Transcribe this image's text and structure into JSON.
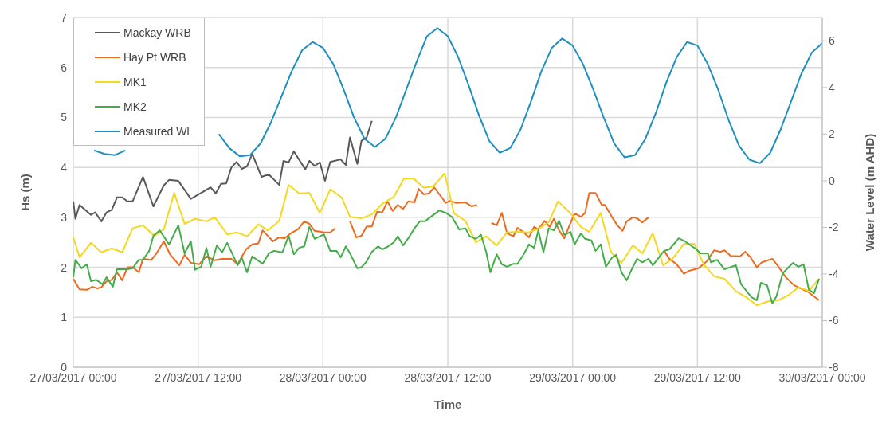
{
  "chart_data": {
    "type": "line",
    "xlabel": "Time",
    "ylabel": "Hs (m)",
    "y2label": "Water Level (m AHD)",
    "xlim": [
      "2017-03-27T00:00",
      "2017-03-30T00:00"
    ],
    "xticks": [
      {
        "value": "2017-03-27T00:00",
        "label": "27/03/2017 00:00"
      },
      {
        "value": "2017-03-27T12:00",
        "label": "27/03/2017 12:00"
      },
      {
        "value": "2017-03-28T00:00",
        "label": "28/03/2017 00:00"
      },
      {
        "value": "2017-03-28T12:00",
        "label": "28/03/2017 12:00"
      },
      {
        "value": "2017-03-29T00:00",
        "label": "29/03/2017 00:00"
      },
      {
        "value": "2017-03-29T12:00",
        "label": "29/03/2017 12:00"
      },
      {
        "value": "2017-03-30T00:00",
        "label": "30/03/2017 00:00"
      }
    ],
    "ylim": [
      0,
      7
    ],
    "yticks": [
      0,
      1,
      2,
      3,
      4,
      5,
      6,
      7
    ],
    "y2lim": [
      -8,
      7
    ],
    "y2ticks": [
      -8,
      -6,
      -4,
      -2,
      0,
      2,
      4,
      6
    ],
    "grid": true,
    "legend": "top left",
    "marker": "none",
    "line_style": "solid",
    "series": [
      {
        "name": "Mackay WRB",
        "color": "#595959",
        "x": [
          "2017-03-27T00:00",
          "2017-03-27T00:12",
          "2017-03-27T00:36",
          "2017-03-27T01:42",
          "2017-03-27T02:06",
          "2017-03-27T02:42",
          "2017-03-27T03:12",
          "2017-03-27T03:42",
          "2017-03-27T04:12",
          "2017-03-27T04:42",
          "2017-03-27T05:12",
          "2017-03-27T05:42",
          "2017-03-27T06:42",
          "2017-03-27T07:42",
          "2017-03-27T08:42",
          "2017-03-27T09:12",
          "2017-03-27T10:06",
          "2017-03-27T11:18",
          "2017-03-27T13:12",
          "2017-03-27T13:42",
          "2017-03-27T14:12",
          "2017-03-27T14:42",
          "2017-03-27T15:12",
          "2017-03-27T15:42",
          "2017-03-27T16:12",
          "2017-03-27T16:42",
          "2017-03-27T17:12",
          "2017-03-27T18:06",
          "2017-03-27T18:48",
          "2017-03-27T19:48",
          "2017-03-27T20:12",
          "2017-03-27T20:42",
          "2017-03-27T21:12",
          "2017-03-27T22:18",
          "2017-03-27T22:42",
          "2017-03-27T23:12",
          "2017-03-27T23:42",
          "2017-03-28T00:12",
          "2017-03-28T00:42",
          "2017-03-28T01:42",
          "2017-03-28T02:12",
          "2017-03-28T02:36",
          "2017-03-28T03:18",
          "2017-03-28T03:42",
          "2017-03-28T04:12",
          "2017-03-28T04:42"
        ],
        "values": [
          3.32,
          2.97,
          3.25,
          3.05,
          3.1,
          2.92,
          3.1,
          3.15,
          3.4,
          3.4,
          3.32,
          3.32,
          3.81,
          3.22,
          3.64,
          3.75,
          3.73,
          3.37,
          3.6,
          3.48,
          3.67,
          3.68,
          4.0,
          4.11,
          3.97,
          4.02,
          4.27,
          3.81,
          3.86,
          3.65,
          4.13,
          4.1,
          4.32,
          3.96,
          4.13,
          4.03,
          4.1,
          3.73,
          4.11,
          4.16,
          4.05,
          4.6,
          4.07,
          4.53,
          4.6,
          4.93
        ]
      },
      {
        "name": "Hay Pt WRB",
        "color": "#ed6b1f",
        "x": [
          "2017-03-27T00:00",
          "2017-03-27T00:36",
          "2017-03-27T01:18",
          "2017-03-27T01:48",
          "2017-03-27T02:18",
          "2017-03-27T02:42",
          "2017-03-27T03:12",
          "2017-03-27T03:42",
          "2017-03-27T04:12",
          "2017-03-27T04:42",
          "2017-03-27T05:12",
          "2017-03-27T05:42",
          "2017-03-27T06:18",
          "2017-03-27T06:42",
          "2017-03-27T07:30",
          "2017-03-27T08:00",
          "2017-03-27T08:42",
          "2017-03-27T09:18",
          "2017-03-27T10:12",
          "2017-03-27T10:42",
          "2017-03-27T11:18",
          "2017-03-27T12:06",
          "2017-03-27T12:48",
          "2017-03-27T13:36",
          "2017-03-27T14:18",
          "2017-03-27T15:12",
          "2017-03-27T15:48",
          "2017-03-27T16:36",
          "2017-03-27T17:12",
          "2017-03-27T17:48",
          "2017-03-27T18:12",
          "2017-03-27T19:12",
          "2017-03-27T19:48",
          "2017-03-27T20:18",
          "2017-03-27T20:54",
          "2017-03-27T21:36",
          "2017-03-27T22:12",
          "2017-03-27T22:42",
          "2017-03-27T23:12",
          "2017-03-28T00:06",
          "2017-03-28T00:42",
          "2017-03-28T01:12",
          "2017-03-28T01:54",
          "2017-03-28T02:36",
          "2017-03-28T03:12",
          "2017-03-28T03:42",
          "2017-03-28T04:12",
          "2017-03-28T04:42",
          "2017-03-28T05:12",
          "2017-03-28T05:42",
          "2017-03-28T06:12",
          "2017-03-28T06:42",
          "2017-03-28T07:12",
          "2017-03-28T07:42",
          "2017-03-28T08:12",
          "2017-03-28T08:48",
          "2017-03-28T09:12",
          "2017-03-28T09:42",
          "2017-03-28T10:12",
          "2017-03-28T10:42",
          "2017-03-28T11:12",
          "2017-03-28T11:48",
          "2017-03-28T12:12",
          "2017-03-28T12:48",
          "2017-03-28T13:42",
          "2017-03-28T14:18",
          "2017-03-28T14:48",
          "2017-03-28T15:30",
          "2017-03-28T16:12",
          "2017-03-28T16:42",
          "2017-03-28T17:12",
          "2017-03-28T17:42",
          "2017-03-28T18:18",
          "2017-03-28T18:42",
          "2017-03-28T19:18",
          "2017-03-28T19:48",
          "2017-03-28T20:18",
          "2017-03-28T20:42",
          "2017-03-28T21:18",
          "2017-03-28T21:48",
          "2017-03-28T22:12",
          "2017-03-28T22:42",
          "2017-03-28T23:12",
          "2017-03-28T23:48",
          "2017-03-29T00:12",
          "2017-03-29T00:48",
          "2017-03-29T01:12",
          "2017-03-29T01:36",
          "2017-03-29T02:12",
          "2017-03-29T02:48",
          "2017-03-29T03:06",
          "2017-03-29T03:48",
          "2017-03-29T04:18",
          "2017-03-29T04:48",
          "2017-03-29T05:12",
          "2017-03-29T05:48",
          "2017-03-29T06:12",
          "2017-03-29T06:42",
          "2017-03-29T07:18",
          "2017-03-29T08:00",
          "2017-03-29T08:48",
          "2017-03-29T09:18",
          "2017-03-29T10:00",
          "2017-03-29T10:42",
          "2017-03-29T11:12",
          "2017-03-29T12:06",
          "2017-03-29T12:54",
          "2017-03-29T13:36",
          "2017-03-29T14:12",
          "2017-03-29T14:36",
          "2017-03-29T15:12",
          "2017-03-29T16:06",
          "2017-03-29T16:36",
          "2017-03-29T17:06",
          "2017-03-29T17:42",
          "2017-03-29T18:12",
          "2017-03-29T19:12",
          "2017-03-29T19:48",
          "2017-03-29T20:30",
          "2017-03-29T21:18",
          "2017-03-29T21:54",
          "2017-03-29T22:42",
          "2017-03-29T23:42"
        ],
        "values": [
          1.77,
          1.56,
          1.55,
          1.61,
          1.58,
          1.6,
          1.72,
          1.75,
          1.9,
          1.74,
          2.0,
          2.0,
          1.9,
          2.17,
          2.15,
          2.28,
          2.52,
          2.26,
          2.04,
          2.25,
          2.09,
          2.06,
          2.22,
          2.14,
          2.17,
          2.17,
          2.06,
          2.36,
          2.46,
          2.48,
          2.74,
          2.52,
          2.6,
          2.58,
          2.68,
          2.76,
          2.92,
          2.87,
          2.73,
          2.7,
          2.7,
          2.78,
          null,
          2.92,
          2.6,
          2.63,
          2.82,
          2.82,
          3.11,
          3.1,
          3.32,
          3.13,
          3.25,
          3.17,
          3.32,
          3.3,
          3.57,
          3.46,
          3.48,
          3.6,
          3.46,
          3.29,
          3.33,
          3.29,
          3.3,
          3.22,
          3.25,
          null,
          2.89,
          2.84,
          3.09,
          2.68,
          2.62,
          2.79,
          2.7,
          2.6,
          2.81,
          2.76,
          2.93,
          2.81,
          2.97,
          2.74,
          2.58,
          2.89,
          3.08,
          3.01,
          3.09,
          3.49,
          3.49,
          3.25,
          3.25,
          3.0,
          2.84,
          2.73,
          2.92,
          3.0,
          2.98,
          2.9,
          3.0,
          null,
          2.33,
          2.17,
          2.06,
          1.87,
          1.93,
          1.98,
          2.12,
          2.34,
          2.31,
          2.34,
          2.23,
          2.22,
          2.31,
          2.2,
          2.0,
          2.1,
          2.17,
          2.01,
          1.8,
          1.64,
          1.58,
          1.5,
          1.34
        ]
      },
      {
        "name": "MK1",
        "color": "#f5d81e",
        "x": [
          "2017-03-27T00:00",
          "2017-03-27T00:36",
          "2017-03-27T01:42",
          "2017-03-27T02:42",
          "2017-03-27T03:42",
          "2017-03-27T04:42",
          "2017-03-27T05:42",
          "2017-03-27T06:42",
          "2017-03-27T07:48",
          "2017-03-27T08:42",
          "2017-03-27T09:42",
          "2017-03-27T10:42",
          "2017-03-27T11:42",
          "2017-03-27T12:48",
          "2017-03-27T13:36",
          "2017-03-27T14:48",
          "2017-03-27T15:42",
          "2017-03-27T16:42",
          "2017-03-27T17:48",
          "2017-03-27T18:42",
          "2017-03-27T19:48",
          "2017-03-27T20:42",
          "2017-03-27T21:42",
          "2017-03-27T22:42",
          "2017-03-27T23:42",
          "2017-03-28T00:42",
          "2017-03-28T01:48",
          "2017-03-28T02:36",
          "2017-03-28T03:42",
          "2017-03-28T04:42",
          "2017-03-28T05:42",
          "2017-03-28T06:48",
          "2017-03-28T07:48",
          "2017-03-28T08:42",
          "2017-03-28T09:42",
          "2017-03-28T10:36",
          "2017-03-28T11:42",
          "2017-03-28T12:36",
          "2017-03-28T13:42",
          "2017-03-28T14:42",
          "2017-03-28T15:42",
          "2017-03-28T16:42",
          "2017-03-28T17:42",
          "2017-03-28T18:42",
          "2017-03-28T19:48",
          "2017-03-28T20:48",
          "2017-03-28T21:42",
          "2017-03-28T22:36",
          "2017-03-28T23:48",
          "2017-03-29T00:48",
          "2017-03-29T01:36",
          "2017-03-29T02:42",
          "2017-03-29T03:42",
          "2017-03-29T04:42",
          "2017-03-29T05:48",
          "2017-03-29T06:42",
          "2017-03-29T07:42",
          "2017-03-29T08:42",
          "2017-03-29T09:36",
          "2017-03-29T10:42",
          "2017-03-29T11:42",
          "2017-03-29T12:36",
          "2017-03-29T13:36",
          "2017-03-29T14:36",
          "2017-03-29T15:42",
          "2017-03-29T16:42",
          "2017-03-29T17:42",
          "2017-03-29T18:48",
          "2017-03-29T19:48",
          "2017-03-29T20:48",
          "2017-03-29T21:42",
          "2017-03-29T22:42",
          "2017-03-29T23:42"
        ],
        "values": [
          2.6,
          2.2,
          2.49,
          2.3,
          2.38,
          2.3,
          2.78,
          2.84,
          2.63,
          2.76,
          3.49,
          2.87,
          2.97,
          2.92,
          3.0,
          2.66,
          2.7,
          2.62,
          2.86,
          2.74,
          2.93,
          3.65,
          3.48,
          3.49,
          3.09,
          3.56,
          3.4,
          3.01,
          2.98,
          3.06,
          3.27,
          3.41,
          3.78,
          3.78,
          3.59,
          3.62,
          3.88,
          3.08,
          2.93,
          2.5,
          2.62,
          2.44,
          2.7,
          2.71,
          2.7,
          2.78,
          2.9,
          3.32,
          3.08,
          2.81,
          2.71,
          3.09,
          2.3,
          2.09,
          2.44,
          2.28,
          2.68,
          2.04,
          2.17,
          2.47,
          2.47,
          2.06,
          1.82,
          1.77,
          1.52,
          1.4,
          1.24,
          1.32,
          1.34,
          1.45,
          1.6,
          1.53,
          1.77
        ]
      },
      {
        "name": "MK2",
        "color": "#44ad4a",
        "x": [
          "2017-03-27T00:00",
          "2017-03-27T00:12",
          "2017-03-27T00:48",
          "2017-03-27T01:18",
          "2017-03-27T01:42",
          "2017-03-27T02:12",
          "2017-03-27T02:48",
          "2017-03-27T03:12",
          "2017-03-27T03:48",
          "2017-03-27T04:12",
          "2017-03-27T05:12",
          "2017-03-27T05:42",
          "2017-03-27T06:18",
          "2017-03-27T06:42",
          "2017-03-27T07:18",
          "2017-03-27T07:42",
          "2017-03-27T08:18",
          "2017-03-27T09:12",
          "2017-03-27T10:06",
          "2017-03-27T10:42",
          "2017-03-27T11:18",
          "2017-03-27T11:42",
          "2017-03-27T12:18",
          "2017-03-27T12:48",
          "2017-03-27T13:12",
          "2017-03-27T13:48",
          "2017-03-27T14:18",
          "2017-03-27T14:48",
          "2017-03-27T15:48",
          "2017-03-27T16:12",
          "2017-03-27T16:42",
          "2017-03-27T17:12",
          "2017-03-27T18:12",
          "2017-03-27T18:48",
          "2017-03-27T19:18",
          "2017-03-27T20:06",
          "2017-03-27T20:42",
          "2017-03-27T21:12",
          "2017-03-27T21:42",
          "2017-03-27T22:12",
          "2017-03-27T22:42",
          "2017-03-27T23:12",
          "2017-03-28T00:06",
          "2017-03-28T00:42",
          "2017-03-28T01:18",
          "2017-03-28T01:42",
          "2017-03-28T02:12",
          "2017-03-28T02:36",
          "2017-03-28T03:18",
          "2017-03-28T03:42",
          "2017-03-28T04:12",
          "2017-03-28T04:42",
          "2017-03-28T05:18",
          "2017-03-28T05:42",
          "2017-03-28T06:12",
          "2017-03-28T06:48",
          "2017-03-28T07:12",
          "2017-03-28T07:42",
          "2017-03-28T08:12",
          "2017-03-28T08:48",
          "2017-03-28T09:18",
          "2017-03-28T09:48",
          "2017-03-28T10:18",
          "2017-03-28T11:12",
          "2017-03-28T11:48",
          "2017-03-28T12:24",
          "2017-03-28T13:06",
          "2017-03-28T13:42",
          "2017-03-28T14:06",
          "2017-03-28T14:42",
          "2017-03-28T15:12",
          "2017-03-28T15:42",
          "2017-03-28T16:06",
          "2017-03-28T16:42",
          "2017-03-28T17:12",
          "2017-03-28T17:42",
          "2017-03-28T18:18",
          "2017-03-28T18:42",
          "2017-03-28T19:18",
          "2017-03-28T19:48",
          "2017-03-28T20:18",
          "2017-03-28T20:42",
          "2017-03-28T21:12",
          "2017-03-28T21:42",
          "2017-03-28T22:12",
          "2017-03-28T22:42",
          "2017-03-28T23:12",
          "2017-03-28T23:48",
          "2017-03-29T00:12",
          "2017-03-29T00:48",
          "2017-03-29T01:12",
          "2017-03-29T01:48",
          "2017-03-29T02:12",
          "2017-03-29T02:42",
          "2017-03-29T03:12",
          "2017-03-29T03:48",
          "2017-03-29T04:12",
          "2017-03-29T04:42",
          "2017-03-29T05:12",
          "2017-03-29T05:48",
          "2017-03-29T06:12",
          "2017-03-29T06:42",
          "2017-03-29T07:18",
          "2017-03-29T07:42",
          "2017-03-29T08:48",
          "2017-03-29T09:18",
          "2017-03-29T10:12",
          "2017-03-29T10:48",
          "2017-03-29T11:54",
          "2017-03-29T12:18",
          "2017-03-29T13:00",
          "2017-03-29T13:18",
          "2017-03-29T13:54",
          "2017-03-29T14:36",
          "2017-03-29T15:42",
          "2017-03-29T16:12",
          "2017-03-29T17:12",
          "2017-03-29T17:42",
          "2017-03-29T18:06",
          "2017-03-29T18:42",
          "2017-03-29T19:12",
          "2017-03-29T19:36",
          "2017-03-29T20:12",
          "2017-03-29T20:48",
          "2017-03-29T21:12",
          "2017-03-29T21:42",
          "2017-03-29T22:12",
          "2017-03-29T22:42",
          "2017-03-29T23:12",
          "2017-03-29T23:42"
        ],
        "values": [
          1.8,
          2.15,
          1.98,
          2.06,
          1.72,
          1.75,
          1.66,
          1.8,
          1.61,
          1.96,
          1.96,
          1.98,
          2.15,
          2.15,
          2.33,
          2.63,
          2.74,
          2.46,
          2.84,
          2.28,
          2.52,
          1.95,
          2.01,
          2.39,
          2.01,
          2.44,
          2.3,
          2.49,
          2.04,
          2.19,
          1.9,
          2.22,
          2.07,
          2.28,
          2.33,
          2.3,
          2.63,
          2.26,
          2.39,
          2.42,
          2.81,
          2.57,
          2.66,
          2.33,
          2.33,
          2.2,
          2.42,
          2.28,
          1.98,
          2.0,
          2.12,
          2.31,
          2.42,
          2.36,
          2.41,
          2.5,
          2.62,
          2.44,
          2.58,
          2.78,
          2.92,
          2.92,
          3.0,
          3.14,
          3.09,
          3.01,
          2.76,
          2.78,
          2.62,
          2.57,
          2.65,
          2.3,
          1.9,
          2.26,
          2.06,
          2.01,
          2.07,
          2.07,
          2.26,
          2.46,
          2.39,
          2.74,
          2.3,
          2.78,
          2.74,
          2.93,
          2.65,
          2.71,
          2.46,
          2.68,
          2.57,
          2.54,
          2.33,
          2.46,
          2.01,
          2.2,
          2.25,
          1.9,
          1.74,
          2.01,
          2.17,
          2.1,
          2.17,
          2.04,
          2.33,
          2.36,
          2.58,
          2.52,
          2.36,
          2.28,
          2.28,
          2.1,
          2.15,
          1.96,
          2.04,
          1.66,
          1.4,
          1.34,
          1.69,
          1.64,
          1.28,
          1.42,
          1.88,
          2.01,
          2.09,
          2.01,
          2.06,
          1.56,
          1.48,
          1.77
        ]
      },
      {
        "name": "Measured WL",
        "color": "#1f8fbf",
        "axis": "y2",
        "x": [
          "2017-03-27T02:00",
          "2017-03-27T03:00",
          "2017-03-27T04:00",
          "2017-03-27T05:00",
          "2017-03-27T06:00",
          "2017-03-27T14:00",
          "2017-03-27T15:00",
          "2017-03-27T16:00",
          "2017-03-27T17:00",
          "2017-03-27T18:00",
          "2017-03-27T19:00",
          "2017-03-27T20:00",
          "2017-03-27T21:00",
          "2017-03-27T22:00",
          "2017-03-27T23:00",
          "2017-03-28T00:00",
          "2017-03-28T01:00",
          "2017-03-28T02:00",
          "2017-03-28T03:00",
          "2017-03-28T04:00",
          "2017-03-28T05:00",
          "2017-03-28T06:00",
          "2017-03-28T07:00",
          "2017-03-28T08:00",
          "2017-03-28T09:00",
          "2017-03-28T10:00",
          "2017-03-28T11:00",
          "2017-03-28T12:00",
          "2017-03-28T13:00",
          "2017-03-28T14:00",
          "2017-03-28T15:00",
          "2017-03-28T16:00",
          "2017-03-28T17:00",
          "2017-03-28T18:00",
          "2017-03-28T19:00",
          "2017-03-28T20:00",
          "2017-03-28T21:00",
          "2017-03-28T22:00",
          "2017-03-28T23:00",
          "2017-03-29T00:00",
          "2017-03-29T01:00",
          "2017-03-29T02:00",
          "2017-03-29T03:00",
          "2017-03-29T04:00",
          "2017-03-29T05:00",
          "2017-03-29T06:00",
          "2017-03-29T07:00",
          "2017-03-29T08:00",
          "2017-03-29T09:00",
          "2017-03-29T10:00",
          "2017-03-29T11:00",
          "2017-03-29T12:00",
          "2017-03-29T13:00",
          "2017-03-29T14:00",
          "2017-03-29T15:00",
          "2017-03-29T16:00",
          "2017-03-29T17:00",
          "2017-03-29T18:00",
          "2017-03-29T19:00",
          "2017-03-29T20:00",
          "2017-03-29T21:00",
          "2017-03-29T22:00",
          "2017-03-29T23:00",
          "2017-03-30T00:00"
        ],
        "values": [
          1.3,
          1.15,
          1.1,
          1.3,
          null,
          2.0,
          1.4,
          1.05,
          1.1,
          1.6,
          2.5,
          3.6,
          4.7,
          5.6,
          5.95,
          5.7,
          5.0,
          3.9,
          2.7,
          1.8,
          1.45,
          1.8,
          2.7,
          3.9,
          5.1,
          6.2,
          6.55,
          6.2,
          5.3,
          4.1,
          2.8,
          1.7,
          1.2,
          1.4,
          2.2,
          3.4,
          4.7,
          5.7,
          6.1,
          5.8,
          5.0,
          3.9,
          2.7,
          1.6,
          1.0,
          1.1,
          1.8,
          2.9,
          4.2,
          5.3,
          5.95,
          5.8,
          5.0,
          3.9,
          2.6,
          1.5,
          0.9,
          0.75,
          1.2,
          2.2,
          3.4,
          4.6,
          5.5,
          5.9
        ]
      }
    ]
  }
}
